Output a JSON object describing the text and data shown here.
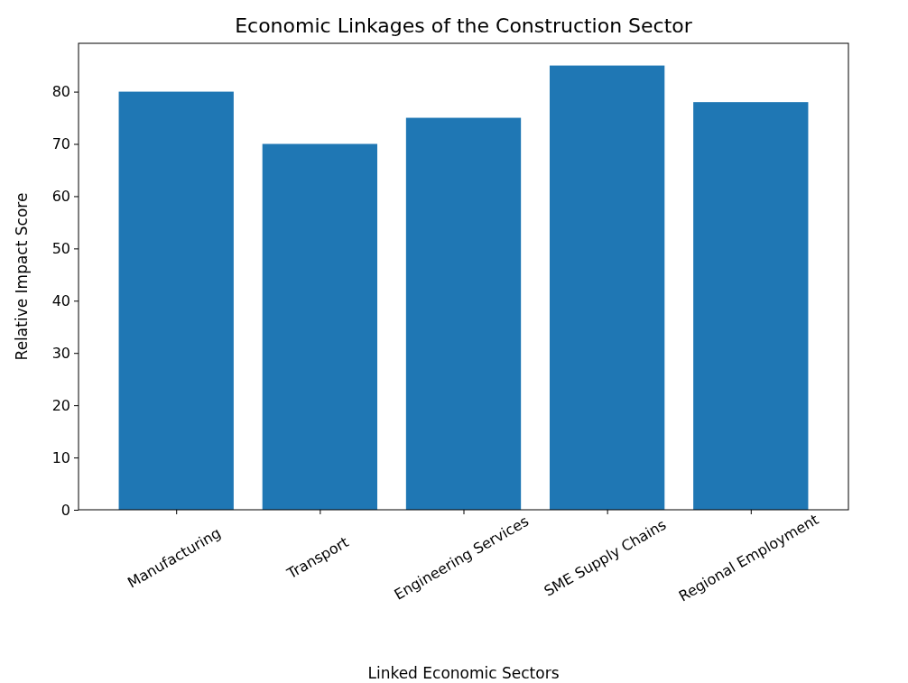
{
  "chart_data": {
    "type": "bar",
    "title": "Economic Linkages of the Construction Sector",
    "xlabel": "Linked Economic Sectors",
    "ylabel": "Relative Impact Score",
    "categories": [
      "Manufacturing",
      "Transport",
      "Engineering Services",
      "SME Supply Chains",
      "Regional Employment"
    ],
    "values": [
      80,
      70,
      75,
      85,
      78
    ],
    "color": "#1f77b4",
    "ylim": [
      0,
      89.25
    ],
    "yticks": [
      0,
      10,
      20,
      30,
      40,
      50,
      60,
      70,
      80
    ],
    "grid": false
  }
}
